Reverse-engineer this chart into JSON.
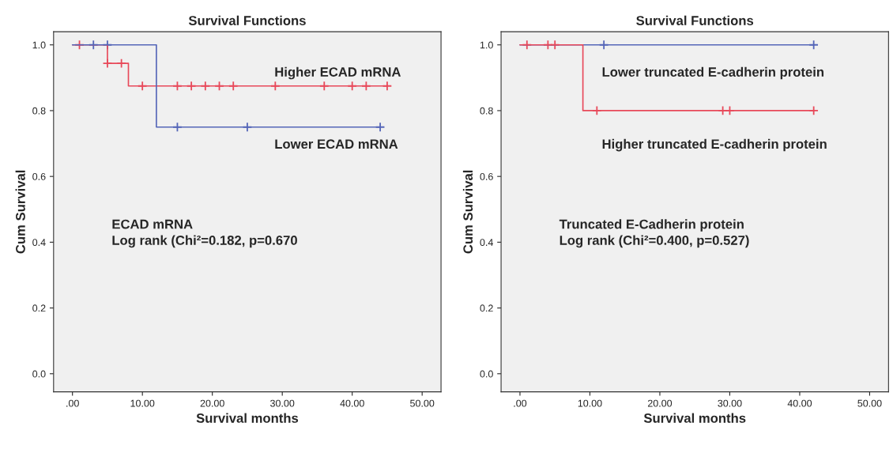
{
  "chart_data": [
    {
      "type": "step",
      "title": "Survival Functions",
      "xlabel": "Survival months",
      "ylabel": "Cum Survival",
      "xlim": [
        -2.7,
        52.7
      ],
      "ylim": [
        -0.055,
        1.04
      ],
      "xticks": [
        {
          "value": 0,
          "label": ".00"
        },
        {
          "value": 10,
          "label": "10.00"
        },
        {
          "value": 20,
          "label": "20.00"
        },
        {
          "value": 30,
          "label": "30.00"
        },
        {
          "value": 40,
          "label": "40.00"
        },
        {
          "value": 50,
          "label": "50.00"
        }
      ],
      "yticks": [
        {
          "value": 0,
          "label": "0.0"
        },
        {
          "value": 0.2,
          "label": "0.2"
        },
        {
          "value": 0.4,
          "label": "0.4"
        },
        {
          "value": 0.6,
          "label": "0.6"
        },
        {
          "value": 0.8,
          "label": "0.8"
        },
        {
          "value": 1,
          "label": "1.0"
        }
      ],
      "grid": false,
      "line_style": "solid",
      "series": [
        {
          "color": "#e8495a",
          "x": [
            0,
            5,
            8,
            45
          ],
          "values": [
            1,
            0.944,
            0.875,
            0.875
          ]
        },
        {
          "color": "#5566b8",
          "x": [
            0,
            12,
            44
          ],
          "values": [
            1,
            0.75,
            0.75
          ]
        },
        {
          "type": "scatter",
          "marker": "cross",
          "color": "#e8495a",
          "x": [
            1,
            5,
            7,
            10,
            15,
            17,
            19,
            21,
            23,
            29,
            36,
            40,
            42,
            45
          ],
          "values": [
            1,
            0.944,
            0.944,
            0.875,
            0.875,
            0.875,
            0.875,
            0.875,
            0.875,
            0.875,
            0.875,
            0.875,
            0.875,
            0.875
          ]
        },
        {
          "type": "scatter",
          "marker": "cross",
          "color": "#5566b8",
          "x": [
            3,
            5,
            15,
            25,
            44
          ],
          "values": [
            1,
            1,
            0.75,
            0.75,
            0.75
          ]
        }
      ],
      "annotations": [
        "Higher ECAD mRNA",
        "Lower ECAD mRNA",
        "ECAD mRNA\nLog rank (Chi²=0.182, p=0.670"
      ]
    },
    {
      "type": "step",
      "title": "Survival Functions",
      "xlabel": "Survival months",
      "ylabel": "Cum Survival",
      "xlim": [
        -2.7,
        52.7
      ],
      "ylim": [
        -0.055,
        1.04
      ],
      "xticks": [
        {
          "value": 0,
          "label": ".00"
        },
        {
          "value": 10,
          "label": "10.00"
        },
        {
          "value": 20,
          "label": "20.00"
        },
        {
          "value": 30,
          "label": "30.00"
        },
        {
          "value": 40,
          "label": "40.00"
        },
        {
          "value": 50,
          "label": "50.00"
        }
      ],
      "yticks": [
        {
          "value": 0,
          "label": "0.0"
        },
        {
          "value": 0.2,
          "label": "0.2"
        },
        {
          "value": 0.4,
          "label": "0.4"
        },
        {
          "value": 0.6,
          "label": "0.6"
        },
        {
          "value": 0.8,
          "label": "0.8"
        },
        {
          "value": 1,
          "label": "1.0"
        }
      ],
      "grid": false,
      "line_style": "solid",
      "series": [
        {
          "color": "#5566b8",
          "x": [
            0,
            42
          ],
          "values": [
            1,
            1
          ]
        },
        {
          "color": "#e8495a",
          "x": [
            0,
            9,
            42
          ],
          "values": [
            1,
            0.8,
            0.8
          ]
        },
        {
          "type": "scatter",
          "marker": "cross",
          "color": "#5566b8",
          "x": [
            12,
            42
          ],
          "values": [
            1,
            1
          ]
        },
        {
          "type": "scatter",
          "marker": "cross",
          "color": "#e8495a",
          "x": [
            1,
            4,
            5,
            11,
            29,
            30,
            42
          ],
          "values": [
            1,
            1,
            1,
            0.8,
            0.8,
            0.8,
            0.8
          ]
        }
      ],
      "annotations": [
        "Lower truncated E-cadherin protein",
        "Higher truncated E-cadherin protein",
        "Truncated E-Cadherin protein\nLog rank (Chi²=0.400, p=0.527)"
      ]
    }
  ]
}
